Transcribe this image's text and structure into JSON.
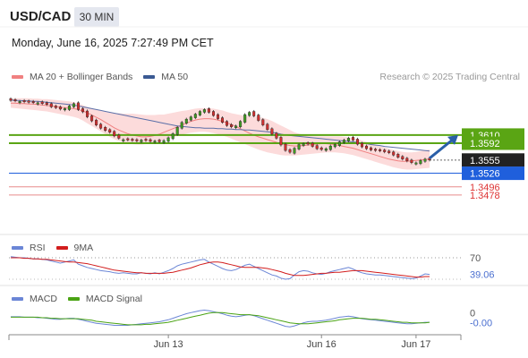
{
  "header": {
    "symbol": "USD/CAD",
    "timeframe": "30 MIN",
    "datetime": "Monday, June 16, 2025 7:27:49 PM CET"
  },
  "legend": {
    "ma20_label": "MA 20 + Bollinger Bands",
    "ma50_label": "MA 50",
    "credit": "Research © 2025 Trading Central"
  },
  "colors": {
    "ma20": "#f08080",
    "bands_fill": "#fbd5d5",
    "ma50": "#5b6fa8",
    "resistance": "#5aa514",
    "support_blue": "#1f5fdc",
    "support_red": "#e88c8c",
    "up_candle": "#3f9b22",
    "down_candle": "#d23030",
    "arrow": "#2a5fa8",
    "rsi": "#6b86d6",
    "rsi_ma": "#d21d1d",
    "macd": "#6b86d6",
    "macd_signal": "#4aa314"
  },
  "chart_data": [
    {
      "type": "candlestick",
      "title": "USD/CAD",
      "price_tags": [
        {
          "value": "1.3610",
          "style": "resistance"
        },
        {
          "value": "1.3592",
          "style": "resistance"
        },
        {
          "value": "1.3555",
          "style": "current"
        },
        {
          "value": "1.3526",
          "style": "support"
        },
        {
          "value": "1.3496",
          "style": "plain"
        },
        {
          "value": "1.3478",
          "style": "plain"
        }
      ],
      "levels": {
        "resistance": [
          1.361,
          1.3592
        ],
        "current": 1.3555,
        "support": [
          1.3526,
          1.3496,
          1.3478
        ]
      },
      "ylim": [
        1.347,
        1.372
      ],
      "x_ticks": [
        "Jun 13",
        "Jun 16",
        "Jun 17"
      ],
      "x_tick_index": [
        35,
        69,
        90
      ],
      "closes": [
        1.3686,
        1.3685,
        1.3684,
        1.3683,
        1.3682,
        1.3681,
        1.3681,
        1.3679,
        1.3677,
        1.3672,
        1.367,
        1.3667,
        1.3668,
        1.3674,
        1.3679,
        1.3666,
        1.3661,
        1.365,
        1.3641,
        1.3632,
        1.3625,
        1.362,
        1.3616,
        1.3608,
        1.3603,
        1.36,
        1.3599,
        1.3598,
        1.3597,
        1.3599,
        1.3598,
        1.3596,
        1.3597,
        1.3595,
        1.3598,
        1.3604,
        1.3613,
        1.3627,
        1.3638,
        1.3645,
        1.365,
        1.3656,
        1.3662,
        1.3666,
        1.366,
        1.3653,
        1.3646,
        1.3638,
        1.3631,
        1.3628,
        1.363,
        1.364,
        1.3655,
        1.366,
        1.3652,
        1.3642,
        1.3632,
        1.3622,
        1.3612,
        1.3603,
        1.3588,
        1.3576,
        1.3572,
        1.3581,
        1.3589,
        1.3591,
        1.359,
        1.3585,
        1.358,
        1.3578,
        1.358,
        1.3586,
        1.3589,
        1.3595,
        1.3599,
        1.3603,
        1.3599,
        1.359,
        1.3584,
        1.358,
        1.3577,
        1.3576,
        1.3575,
        1.3573,
        1.3571,
        1.3566,
        1.3561,
        1.3557,
        1.3553,
        1.3549,
        1.3549,
        1.3554,
        1.3557,
        1.3555
      ],
      "bullish": [
        false,
        false,
        true,
        false,
        false,
        false,
        true,
        false,
        false,
        false,
        false,
        false,
        true,
        true,
        true,
        false,
        false,
        false,
        false,
        false,
        false,
        false,
        false,
        false,
        false,
        true,
        false,
        false,
        false,
        true,
        false,
        false,
        true,
        false,
        true,
        true,
        true,
        true,
        true,
        true,
        true,
        true,
        true,
        true,
        false,
        false,
        false,
        false,
        false,
        false,
        true,
        true,
        true,
        true,
        false,
        false,
        false,
        false,
        false,
        false,
        false,
        false,
        false,
        true,
        true,
        true,
        false,
        false,
        false,
        false,
        true,
        true,
        true,
        true,
        true,
        true,
        false,
        false,
        false,
        false,
        false,
        false,
        false,
        false,
        false,
        false,
        false,
        false,
        false,
        false,
        true,
        true,
        true,
        false
      ],
      "ma20": [
        1.368,
        1.368,
        1.3679,
        1.3679,
        1.3678,
        1.3678,
        1.3677,
        1.3676,
        1.3675,
        1.3674,
        1.3673,
        1.3671,
        1.367,
        1.3669,
        1.3668,
        1.3666,
        1.3663,
        1.3659,
        1.3654,
        1.3649,
        1.3644,
        1.3638,
        1.3632,
        1.3626,
        1.3621,
        1.3617,
        1.3613,
        1.361,
        1.3608,
        1.3606,
        1.3606,
        1.3607,
        1.3609,
        1.3612,
        1.3616,
        1.362,
        1.3624,
        1.3628,
        1.3632,
        1.3636,
        1.364,
        1.3643,
        1.3645,
        1.3646,
        1.3646,
        1.3645,
        1.3643,
        1.364,
        1.3637,
        1.3633,
        1.3629,
        1.3624,
        1.3619,
        1.3614,
        1.361,
        1.3606,
        1.3603,
        1.36,
        1.3597,
        1.3594,
        1.3591,
        1.3589,
        1.3587,
        1.3586,
        1.3586,
        1.3587,
        1.3588,
        1.3589,
        1.359,
        1.3591,
        1.3591,
        1.359,
        1.3589,
        1.3587,
        1.3585,
        1.3583,
        1.3581,
        1.3578,
        1.3575,
        1.3572,
        1.3569,
        1.3566,
        1.3563,
        1.356,
        1.3557,
        1.3555,
        1.3553,
        1.3552,
        1.3552,
        1.3553,
        1.3554,
        1.3555,
        1.3556,
        1.3557
      ],
      "bb_upper": [
        1.369,
        1.3691,
        1.3691,
        1.3691,
        1.3691,
        1.369,
        1.369,
        1.3689,
        1.3689,
        1.3688,
        1.3687,
        1.3686,
        1.3685,
        1.3684,
        1.3682,
        1.3679,
        1.3676,
        1.3672,
        1.3669,
        1.3666,
        1.3663,
        1.3661,
        1.3659,
        1.3658,
        1.3658,
        1.3657,
        1.3657,
        1.3657,
        1.3656,
        1.3655,
        1.3654,
        1.3654,
        1.3654,
        1.3655,
        1.3655,
        1.3657,
        1.3659,
        1.3661,
        1.3663,
        1.3664,
        1.3666,
        1.3668,
        1.3669,
        1.3669,
        1.3669,
        1.3668,
        1.3666,
        1.3664,
        1.3661,
        1.3658,
        1.3656,
        1.3654,
        1.3652,
        1.3652,
        1.3651,
        1.365,
        1.3648,
        1.3645,
        1.3641,
        1.3636,
        1.3631,
        1.3626,
        1.3621,
        1.3616,
        1.3613,
        1.361,
        1.3608,
        1.3607,
        1.3607,
        1.3607,
        1.3607,
        1.3607,
        1.3607,
        1.3607,
        1.3606,
        1.3605,
        1.3603,
        1.3601,
        1.3598,
        1.3595,
        1.3592,
        1.3589,
        1.3586,
        1.3583,
        1.358,
        1.3577,
        1.3575,
        1.3573,
        1.3572,
        1.3572,
        1.3573,
        1.3575,
        1.3577,
        1.3578
      ],
      "bb_lower": [
        1.367,
        1.3669,
        1.3668,
        1.3667,
        1.3666,
        1.3665,
        1.3664,
        1.3663,
        1.3662,
        1.366,
        1.3658,
        1.3656,
        1.3654,
        1.3652,
        1.365,
        1.3647,
        1.3642,
        1.3636,
        1.363,
        1.3624,
        1.3618,
        1.3612,
        1.3606,
        1.3601,
        1.3597,
        1.3594,
        1.3592,
        1.359,
        1.3589,
        1.3589,
        1.359,
        1.3592,
        1.3594,
        1.3596,
        1.3599,
        1.3602,
        1.3605,
        1.3608,
        1.3611,
        1.3613,
        1.3615,
        1.3616,
        1.3617,
        1.3617,
        1.3616,
        1.3614,
        1.3612,
        1.3609,
        1.3606,
        1.3602,
        1.3598,
        1.3594,
        1.359,
        1.3586,
        1.3582,
        1.3578,
        1.3575,
        1.3572,
        1.357,
        1.3568,
        1.3566,
        1.3565,
        1.3565,
        1.3565,
        1.3566,
        1.3567,
        1.3568,
        1.3569,
        1.357,
        1.3571,
        1.3572,
        1.3572,
        1.3572,
        1.3571,
        1.357,
        1.3568,
        1.3566,
        1.3563,
        1.356,
        1.3557,
        1.3554,
        1.3551,
        1.3548,
        1.3545,
        1.3542,
        1.3539,
        1.3537,
        1.3535,
        1.3534,
        1.3534,
        1.3535,
        1.3536,
        1.3537,
        1.3538
      ],
      "ma50": [
        1.3687,
        1.3686,
        1.3686,
        1.3685,
        1.3685,
        1.3684,
        1.3684,
        1.3683,
        1.3682,
        1.3681,
        1.368,
        1.3679,
        1.3678,
        1.3677,
        1.3676,
        1.3674,
        1.3672,
        1.367,
        1.3668,
        1.3666,
        1.3664,
        1.3662,
        1.366,
        1.3658,
        1.3656,
        1.3654,
        1.3652,
        1.365,
        1.3648,
        1.3646,
        1.3644,
        1.3642,
        1.364,
        1.3638,
        1.3636,
        1.3634,
        1.3632,
        1.363,
        1.3629,
        1.3628,
        1.3627,
        1.3626,
        1.3626,
        1.3625,
        1.3625,
        1.3625,
        1.3624,
        1.3624,
        1.3623,
        1.3623,
        1.3622,
        1.3622,
        1.3621,
        1.3621,
        1.362,
        1.3619,
        1.3618,
        1.3617,
        1.3616,
        1.3614,
        1.3612,
        1.361,
        1.3609,
        1.3608,
        1.3607,
        1.3606,
        1.3605,
        1.3604,
        1.3603,
        1.3602,
        1.3601,
        1.36,
        1.3599,
        1.3598,
        1.3597,
        1.3596,
        1.3595,
        1.3594,
        1.3592,
        1.3591,
        1.3589,
        1.3588,
        1.3587,
        1.3585,
        1.3584,
        1.3583,
        1.3582,
        1.3581,
        1.358,
        1.3579,
        1.3578,
        1.3577,
        1.3576,
        1.3575
      ]
    },
    {
      "type": "line",
      "title": "RSI",
      "series": [
        {
          "name": "RSI",
          "values": [
            72,
            71,
            70,
            70,
            69,
            68,
            68,
            67,
            66,
            64,
            62,
            60,
            62,
            64,
            66,
            58,
            55,
            52,
            50,
            48,
            46,
            45,
            44,
            42,
            41,
            42,
            41,
            40,
            40,
            42,
            41,
            40,
            42,
            40,
            43,
            46,
            50,
            55,
            58,
            60,
            62,
            64,
            66,
            67,
            62,
            58,
            54,
            50,
            47,
            46,
            48,
            52,
            56,
            58,
            54,
            50,
            46,
            42,
            38,
            36,
            32,
            30,
            31,
            38,
            44,
            46,
            45,
            42,
            40,
            39,
            41,
            44,
            46,
            48,
            50,
            52,
            49,
            45,
            42,
            40,
            39,
            38,
            38,
            37,
            36,
            35,
            34,
            33,
            32,
            31,
            32,
            36,
            40,
            39.06
          ]
        },
        {
          "name": "9MA",
          "values": [
            70,
            70,
            70,
            69,
            69,
            68,
            68,
            67,
            67,
            66,
            65,
            64,
            63,
            62,
            62,
            61,
            60,
            59,
            57,
            55,
            53,
            51,
            49,
            47,
            46,
            45,
            44,
            43,
            42,
            42,
            41,
            41,
            41,
            41,
            41,
            42,
            43,
            45,
            47,
            49,
            51,
            54,
            57,
            59,
            61,
            62,
            62,
            61,
            59,
            57,
            55,
            53,
            52,
            52,
            52,
            52,
            51,
            50,
            48,
            46,
            44,
            41,
            39,
            37,
            37,
            37,
            38,
            39,
            40,
            41,
            41,
            42,
            43,
            43,
            44,
            45,
            46,
            46,
            46,
            45,
            44,
            43,
            42,
            41,
            40,
            39,
            38,
            37,
            36,
            35,
            34,
            34,
            35,
            35
          ]
        }
      ],
      "levels": [
        70
      ],
      "ylim": [
        20,
        80
      ],
      "tick_labels": [
        "70",
        "39.06"
      ]
    },
    {
      "type": "line",
      "title": "MACD",
      "series": [
        {
          "name": "MACD",
          "values": [
            0.0002,
            0.0002,
            0.0002,
            0.0001,
            0.0001,
            0.0001,
            0.0,
            0.0,
            -0.0001,
            -0.0002,
            -0.0003,
            -0.0003,
            -0.0002,
            -0.0001,
            -0.0001,
            -0.0003,
            -0.0005,
            -0.0007,
            -0.0009,
            -0.0011,
            -0.0012,
            -0.0013,
            -0.0014,
            -0.0015,
            -0.0015,
            -0.0015,
            -0.0015,
            -0.0014,
            -0.0013,
            -0.0012,
            -0.0011,
            -0.001,
            -0.0009,
            -0.0008,
            -0.0006,
            -0.0004,
            -0.0001,
            0.0002,
            0.0005,
            0.0008,
            0.001,
            0.0012,
            0.0014,
            0.0015,
            0.0014,
            0.0012,
            0.001,
            0.0008,
            0.0005,
            0.0003,
            0.0002,
            0.0003,
            0.0005,
            0.0006,
            0.0004,
            0.0001,
            -0.0002,
            -0.0005,
            -0.0008,
            -0.0011,
            -0.0014,
            -0.0017,
            -0.0018,
            -0.0016,
            -0.0013,
            -0.001,
            -0.0008,
            -0.0007,
            -0.0007,
            -0.0006,
            -0.0005,
            -0.0003,
            -0.0001,
            0.0001,
            0.0002,
            0.0003,
            0.0002,
            0.0,
            -0.0002,
            -0.0003,
            -0.0004,
            -0.0005,
            -0.0006,
            -0.0007,
            -0.0008,
            -0.0009,
            -0.001,
            -0.0011,
            -0.0012,
            -0.0012,
            -0.0011,
            -0.001,
            -0.0009,
            -0.0009
          ]
        },
        {
          "name": "MACD Signal",
          "values": [
            0.0001,
            0.0001,
            0.0001,
            0.0001,
            0.0001,
            0.0001,
            0.0001,
            0.0,
            0.0,
            -0.0001,
            -0.0001,
            -0.0002,
            -0.0002,
            -0.0002,
            -0.0002,
            -0.0002,
            -0.0003,
            -0.0004,
            -0.0005,
            -0.0007,
            -0.0008,
            -0.0009,
            -0.001,
            -0.0011,
            -0.0012,
            -0.0013,
            -0.0014,
            -0.0014,
            -0.0014,
            -0.0014,
            -0.0013,
            -0.0013,
            -0.0012,
            -0.0011,
            -0.001,
            -0.0009,
            -0.0007,
            -0.0005,
            -0.0003,
            -0.0001,
            0.0001,
            0.0003,
            0.0005,
            0.0007,
            0.0009,
            0.001,
            0.001,
            0.001,
            0.0009,
            0.0008,
            0.0007,
            0.0006,
            0.0006,
            0.0006,
            0.0005,
            0.0004,
            0.0002,
            0.0,
            -0.0002,
            -0.0004,
            -0.0006,
            -0.0008,
            -0.001,
            -0.0011,
            -0.0012,
            -0.0012,
            -0.0012,
            -0.0011,
            -0.001,
            -0.0009,
            -0.0008,
            -0.0007,
            -0.0006,
            -0.0004,
            -0.0003,
            -0.0002,
            -0.0001,
            -0.0001,
            -0.0001,
            -0.0002,
            -0.0003,
            -0.0003,
            -0.0004,
            -0.0005,
            -0.0006,
            -0.0007,
            -0.0008,
            -0.0009,
            -0.0009,
            -0.001,
            -0.001,
            -0.001,
            -0.001,
            -0.0009
          ]
        }
      ],
      "ylim": [
        -0.003,
        0.003
      ],
      "tick_labels": [
        "0",
        "-0.00"
      ]
    }
  ],
  "rsi_legend": {
    "rsi_label": "RSI",
    "ma_label": "9MA"
  },
  "macd_legend": {
    "macd_label": "MACD",
    "signal_label": "MACD Signal"
  }
}
